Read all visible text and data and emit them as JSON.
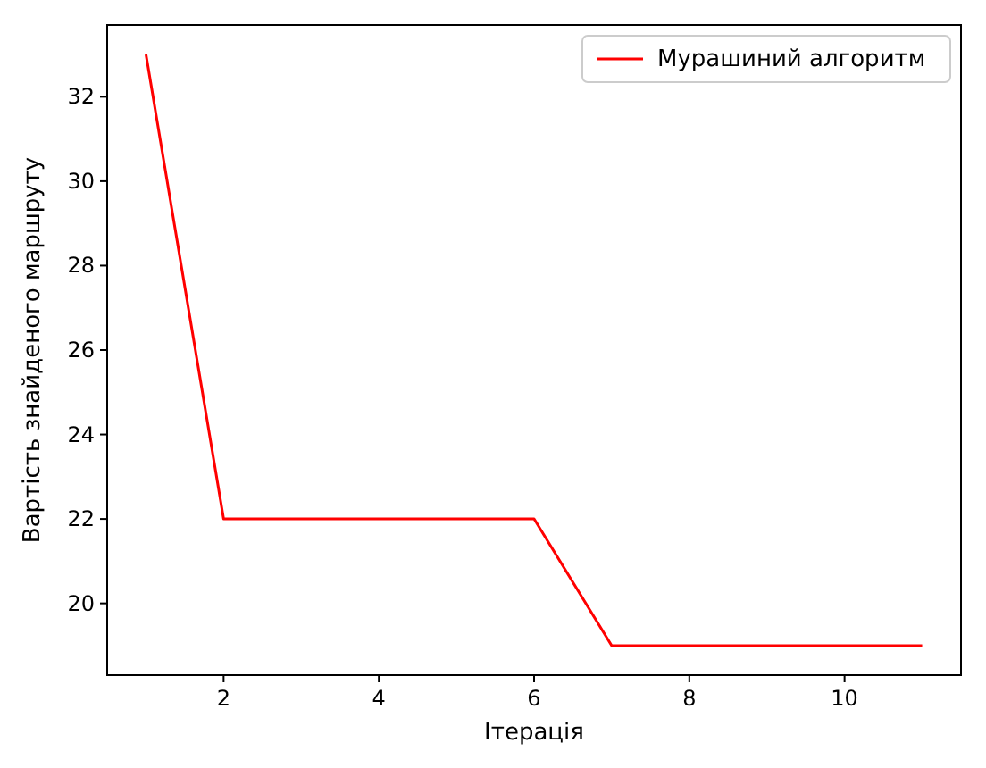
{
  "chart_data": {
    "type": "line",
    "xlabel": "Ітерація",
    "ylabel": "Вартість знайденого маршруту",
    "x": [
      1,
      2,
      3,
      4,
      5,
      6,
      7,
      8,
      9,
      10,
      11
    ],
    "series": [
      {
        "name": "Мурашиний алгоритм",
        "color": "#ff0000",
        "values": [
          33,
          22,
          22,
          22,
          22,
          22,
          19,
          19,
          19,
          19,
          19
        ]
      }
    ],
    "xlim": [
      0.5,
      11.5
    ],
    "xticks": [
      2,
      4,
      6,
      8,
      10
    ],
    "ylim": [
      18.3,
      33.7
    ],
    "yticks": [
      20,
      22,
      24,
      26,
      28,
      30,
      32
    ],
    "legend": "top right",
    "grid": false,
    "marker": "none",
    "line_style": "solid"
  }
}
